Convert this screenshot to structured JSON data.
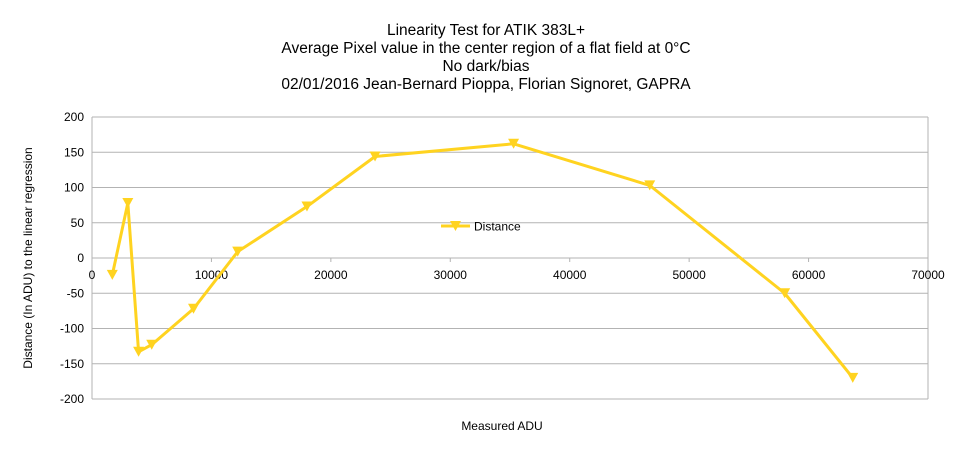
{
  "chart_data": {
    "type": "line",
    "title_lines": [
      "Linearity Test for ATIK 383L+",
      "Average Pixel value in the center region of a flat field at 0°C",
      "No dark/bias",
      "02/01/2016 Jean-Bernard Pioppa, Florian Signoret, GAPRA"
    ],
    "xlabel": "Measured ADU",
    "ylabel": "Distance (In ADU) to the linear regression",
    "xlim": [
      0,
      70000
    ],
    "ylim": [
      -200,
      200
    ],
    "x_ticks": [
      0,
      10000,
      20000,
      30000,
      40000,
      50000,
      60000,
      70000
    ],
    "y_ticks": [
      200,
      150,
      100,
      50,
      0,
      -50,
      -100,
      -150,
      -200
    ],
    "grid": "horizontal",
    "legend_position": "center",
    "series": [
      {
        "name": "Distance",
        "color": "#ffd320",
        "marker": "triangle-down",
        "x": [
          1700,
          3000,
          3900,
          5000,
          8500,
          12200,
          18000,
          23700,
          35300,
          46700,
          58000,
          63700
        ],
        "y": [
          -24,
          78,
          -133,
          -123,
          -72,
          9,
          73,
          144,
          162,
          103,
          -50,
          -170
        ]
      }
    ]
  }
}
